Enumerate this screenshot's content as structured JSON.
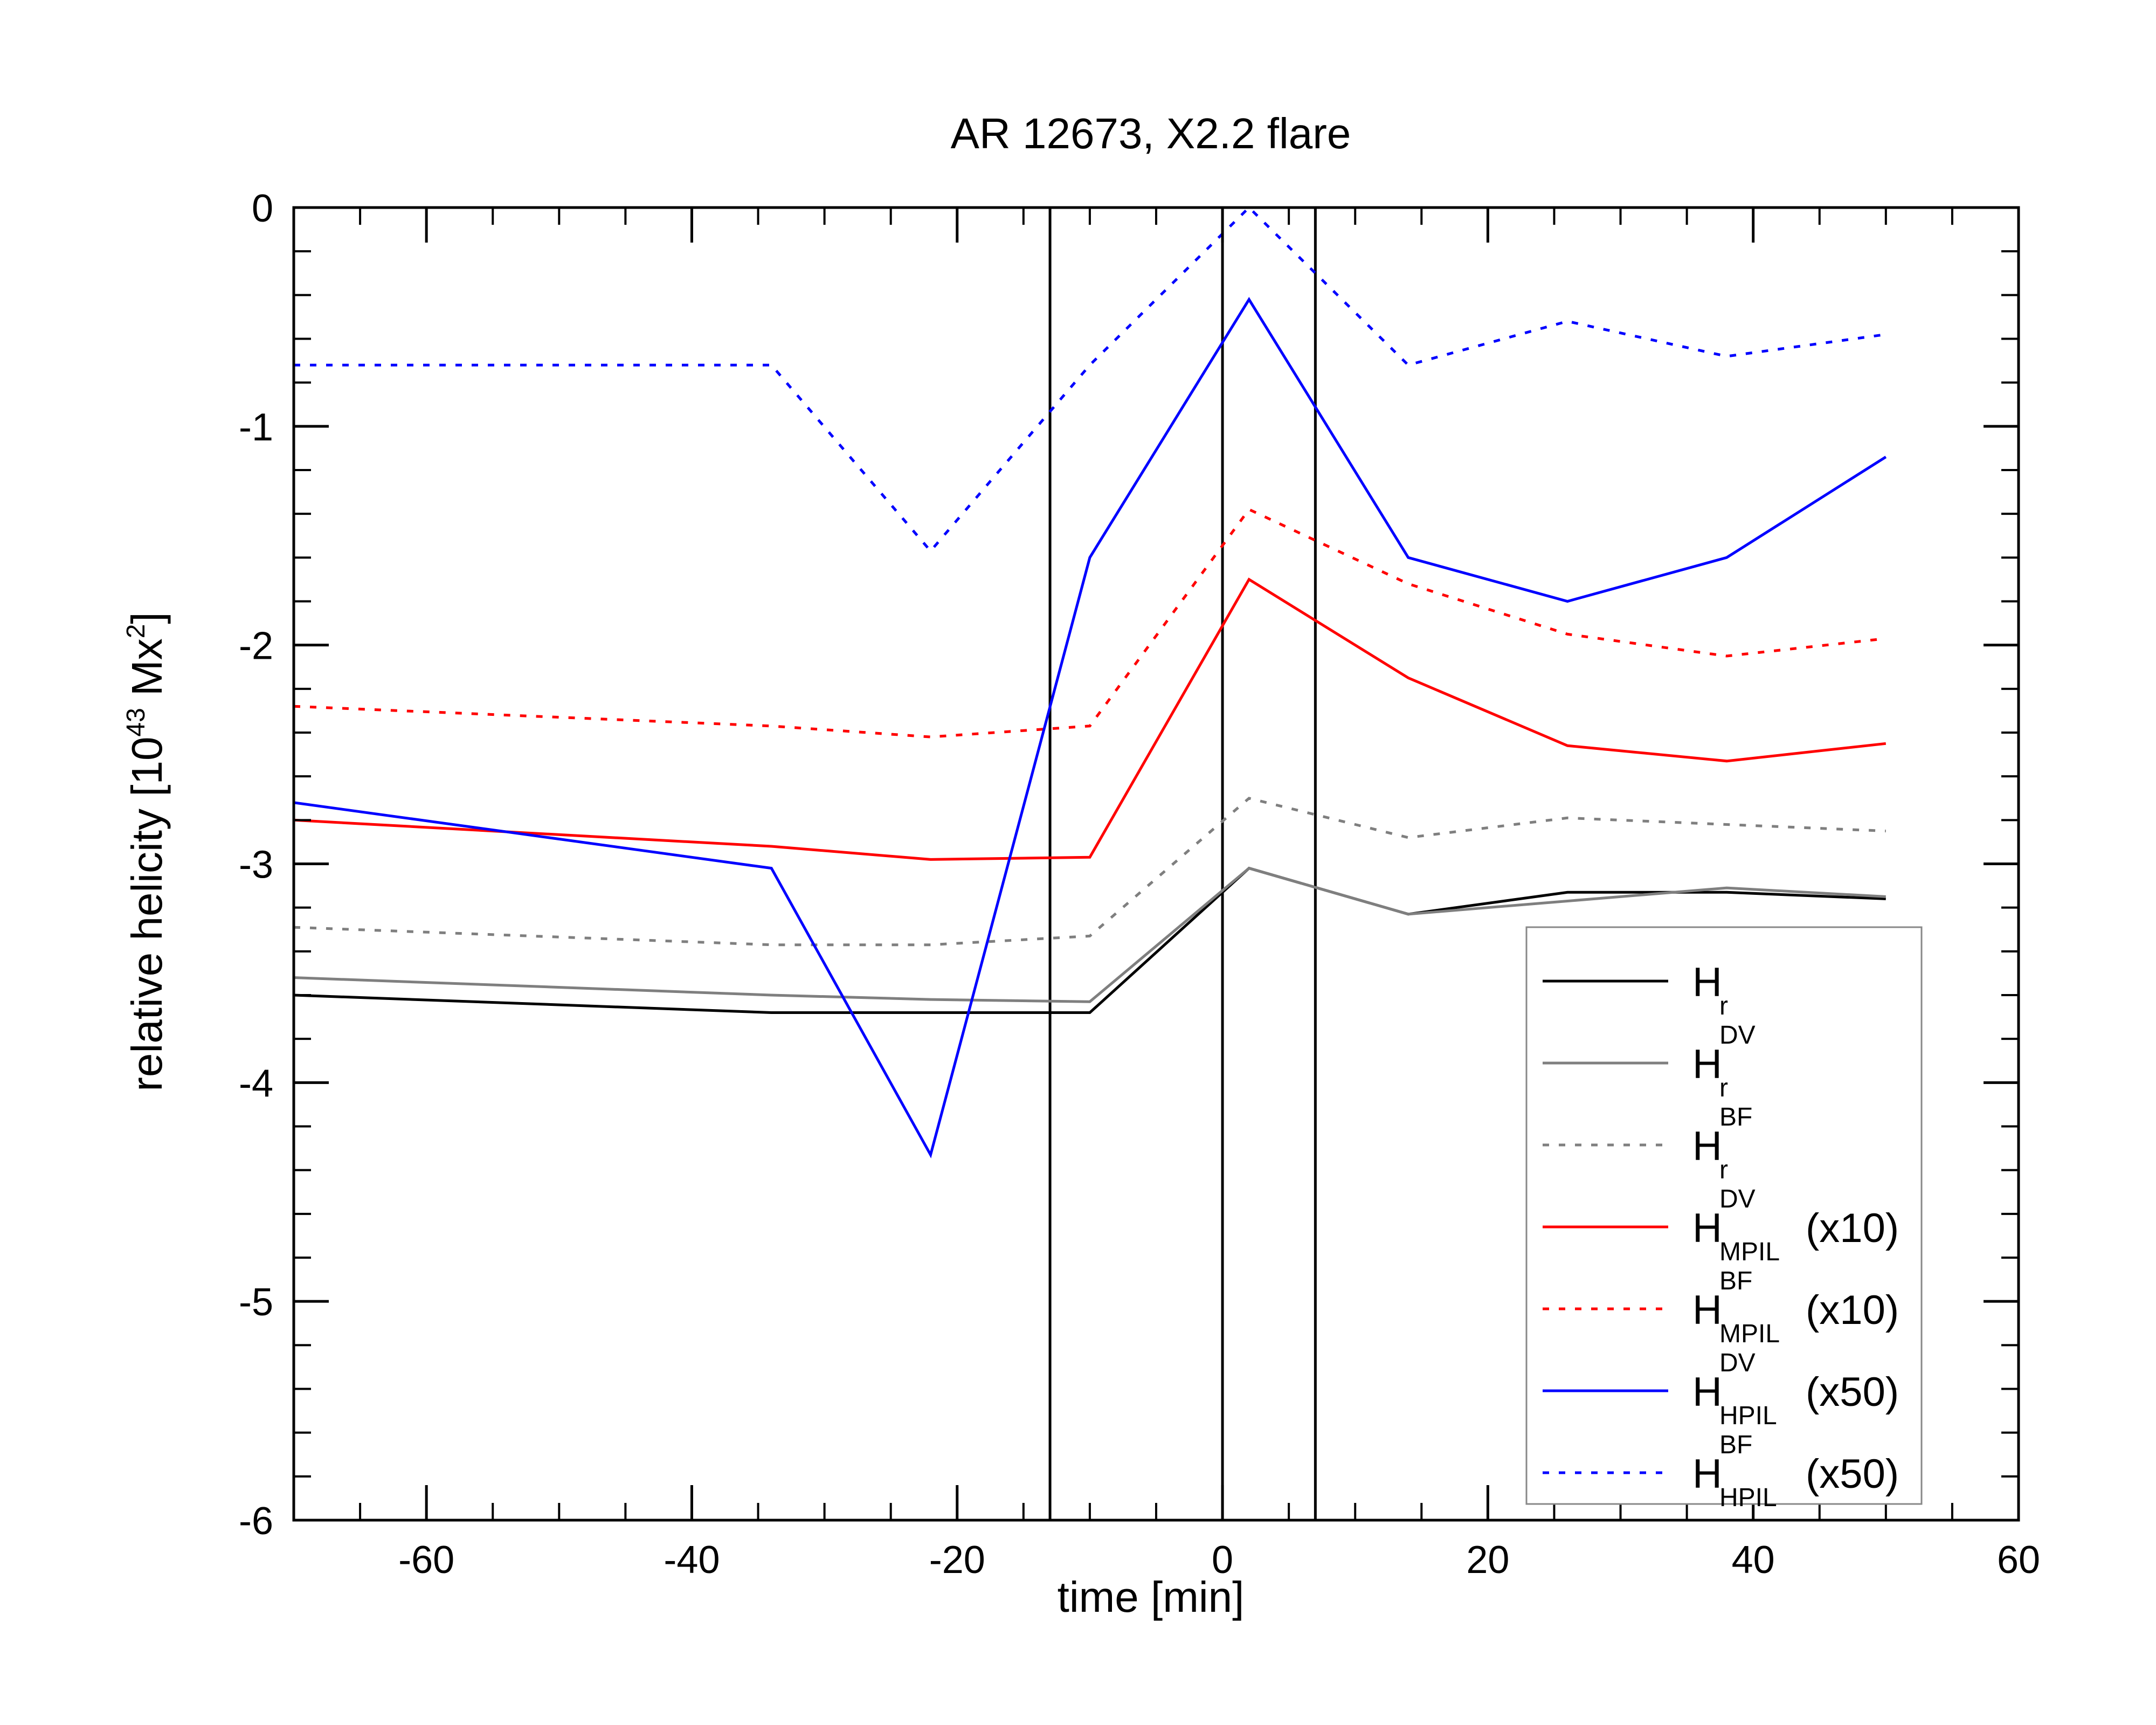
{
  "chart_data": {
    "type": "line",
    "title": "AR 12673, X2.2 flare",
    "xlabel": "time [min]",
    "ylabel": {
      "prefix": "relative helicity [10",
      "exp": "43",
      "mid": " Mx",
      "exp2": "2",
      "suffix": "]"
    },
    "xlim": [
      -70,
      60
    ],
    "ylim": [
      -6,
      0
    ],
    "xticks": [
      -60,
      -40,
      -20,
      0,
      20,
      40,
      60
    ],
    "yticks": [
      0,
      -1,
      -2,
      -3,
      -4,
      -5,
      -6
    ],
    "vertical_lines": [
      -13,
      0,
      7
    ],
    "series": [
      {
        "name": "Hr",
        "base": "H",
        "sub": "r",
        "sup": "",
        "suffix": "",
        "color": "#000000",
        "dash": "solid",
        "x": [
          -70,
          -34,
          -22,
          -10,
          2,
          14,
          26,
          38,
          50
        ],
        "y": [
          -3.6,
          -3.68,
          -3.68,
          -3.68,
          -3.02,
          -3.23,
          -3.13,
          -3.13,
          -3.16
        ]
      },
      {
        "name": "Hr DV",
        "base": "H",
        "sub": "r",
        "sup": "DV",
        "suffix": "",
        "color": "#7f7f7f",
        "dash": "solid",
        "x": [
          -70,
          -34,
          -22,
          -10,
          2,
          14,
          26,
          38,
          50
        ],
        "y": [
          -3.52,
          -3.6,
          -3.62,
          -3.63,
          -3.02,
          -3.23,
          -3.17,
          -3.11,
          -3.15
        ]
      },
      {
        "name": "Hr BF",
        "base": "H",
        "sub": "r",
        "sup": "BF",
        "suffix": "",
        "color": "#7f7f7f",
        "dash": "dotted",
        "x": [
          -70,
          -34,
          -22,
          -10,
          2,
          14,
          26,
          38,
          50
        ],
        "y": [
          -3.29,
          -3.37,
          -3.37,
          -3.33,
          -2.7,
          -2.88,
          -2.79,
          -2.82,
          -2.85
        ]
      },
      {
        "name": "H MPIL DV (x10)",
        "base": "H",
        "sub": "MPIL",
        "sup": "DV",
        "suffix": "(x10)",
        "color": "#ff0000",
        "dash": "solid",
        "x": [
          -70,
          -34,
          -22,
          -10,
          2,
          14,
          26,
          38,
          50
        ],
        "y": [
          -2.8,
          -2.92,
          -2.98,
          -2.97,
          -1.7,
          -2.15,
          -2.46,
          -2.53,
          -2.45
        ]
      },
      {
        "name": "H MPIL BF (x10)",
        "base": "H",
        "sub": "MPIL",
        "sup": "BF",
        "suffix": "(x10)",
        "color": "#ff0000",
        "dash": "dotted",
        "x": [
          -70,
          -34,
          -22,
          -10,
          2,
          14,
          26,
          38,
          50
        ],
        "y": [
          -2.28,
          -2.37,
          -2.42,
          -2.37,
          -1.38,
          -1.72,
          -1.95,
          -2.05,
          -1.97
        ]
      },
      {
        "name": "H HPIL DV (x50)",
        "base": "H",
        "sub": "HPIL",
        "sup": "DV",
        "suffix": "(x50)",
        "color": "#0000ff",
        "dash": "solid",
        "x": [
          -70,
          -34,
          -22,
          -10,
          2,
          14,
          26,
          38,
          50
        ],
        "y": [
          -2.72,
          -3.02,
          -4.33,
          -1.6,
          -0.42,
          -1.6,
          -1.8,
          -1.6,
          -1.14
        ]
      },
      {
        "name": "H HPIL BF (x50)",
        "base": "H",
        "sub": "HPIL",
        "sup": "BF",
        "suffix": "(x50)",
        "color": "#0000ff",
        "dash": "dotted",
        "x": [
          -70,
          -34,
          -22,
          -10,
          2,
          14,
          26,
          38,
          50
        ],
        "y": [
          -0.72,
          -0.72,
          -1.57,
          -0.72,
          0.0,
          -0.72,
          -0.52,
          -0.68,
          -0.58
        ]
      }
    ]
  }
}
